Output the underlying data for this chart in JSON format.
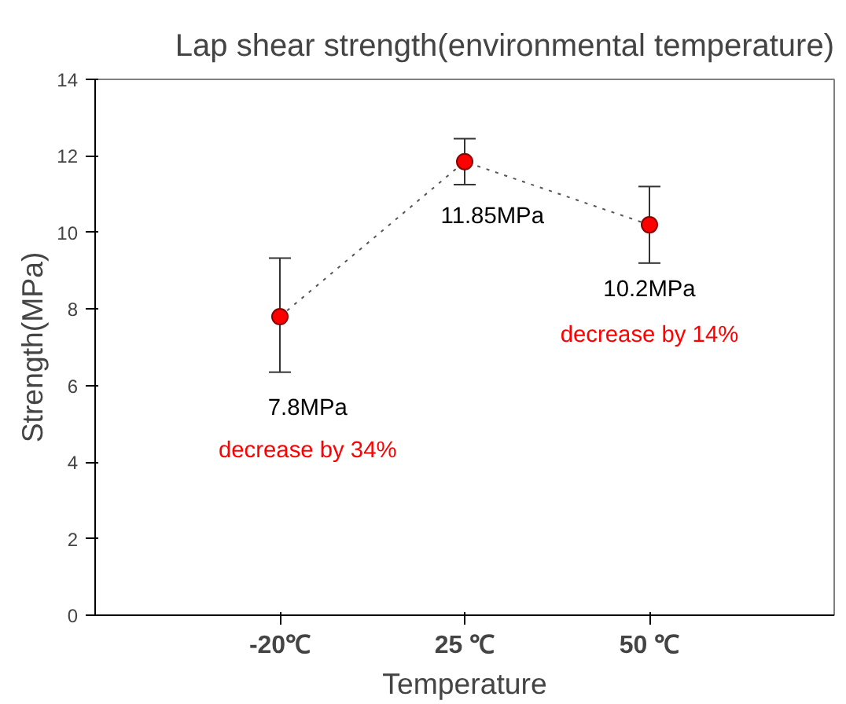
{
  "chart_data": {
    "type": "scatter",
    "title": "Lap shear strength(environmental temperature)",
    "xlabel": "Temperature",
    "ylabel": "Strength(MPa)",
    "categories": [
      "-20℃",
      "25 ℃",
      "50 ℃"
    ],
    "series": [
      {
        "type": "line",
        "color": "#555555",
        "line_style": "dotted",
        "marker": "none",
        "values": [
          7.8,
          11.85,
          10.2
        ]
      },
      {
        "color": "#ff0000",
        "marker": "circle",
        "values": [
          7.8,
          11.85,
          10.2
        ],
        "errors": [
          [
            6.35,
            9.33
          ],
          [
            11.25,
            12.45
          ],
          [
            9.2,
            11.2
          ]
        ]
      }
    ],
    "grid": false,
    "ylim": [
      0,
      14
    ],
    "yticks": [
      0,
      2,
      4,
      6,
      8,
      10,
      12,
      14
    ],
    "annotations": [
      "7.8MPa",
      "decrease by 34%",
      "11.85MPa",
      "10.2MPa",
      "decrease by 14%"
    ]
  }
}
